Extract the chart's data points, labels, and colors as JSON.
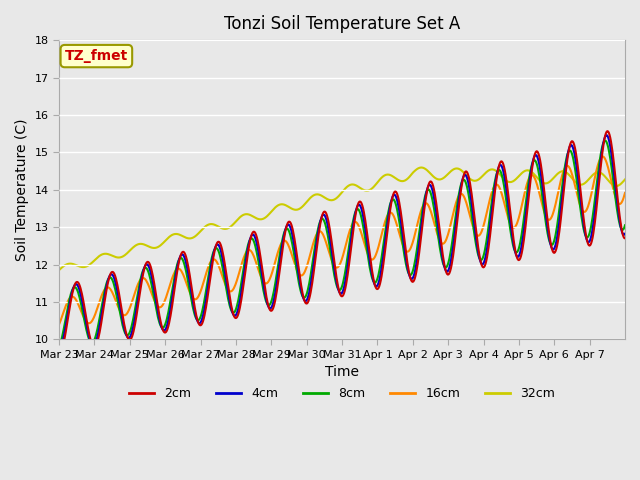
{
  "title": "Tonzi Soil Temperature Set A",
  "xlabel": "Time",
  "ylabel": "Soil Temperature (C)",
  "ylim": [
    10.0,
    18.0
  ],
  "yticks": [
    10.0,
    11.0,
    12.0,
    13.0,
    14.0,
    15.0,
    16.0,
    17.0,
    18.0
  ],
  "xtick_labels": [
    "Mar 23",
    "Mar 24",
    "Mar 25",
    "Mar 26",
    "Mar 27",
    "Mar 28",
    "Mar 29",
    "Mar 30",
    "Mar 31",
    "Apr 1",
    "Apr 2",
    "Apr 3",
    "Apr 4",
    "Apr 5",
    "Apr 6",
    "Apr 7"
  ],
  "legend_label": "TZ_fmet",
  "series_labels": [
    "2cm",
    "4cm",
    "8cm",
    "16cm",
    "32cm"
  ],
  "series_colors": [
    "#cc0000",
    "#0000cc",
    "#00aa00",
    "#ff8800",
    "#cccc00"
  ],
  "line_widths": [
    1.5,
    1.5,
    1.5,
    1.5,
    1.5
  ],
  "bg_color": "#e8e8e8",
  "plot_bg_color": "#e8e8e8",
  "grid_color": "#ffffff",
  "n_days": 16,
  "points_per_day": 48
}
